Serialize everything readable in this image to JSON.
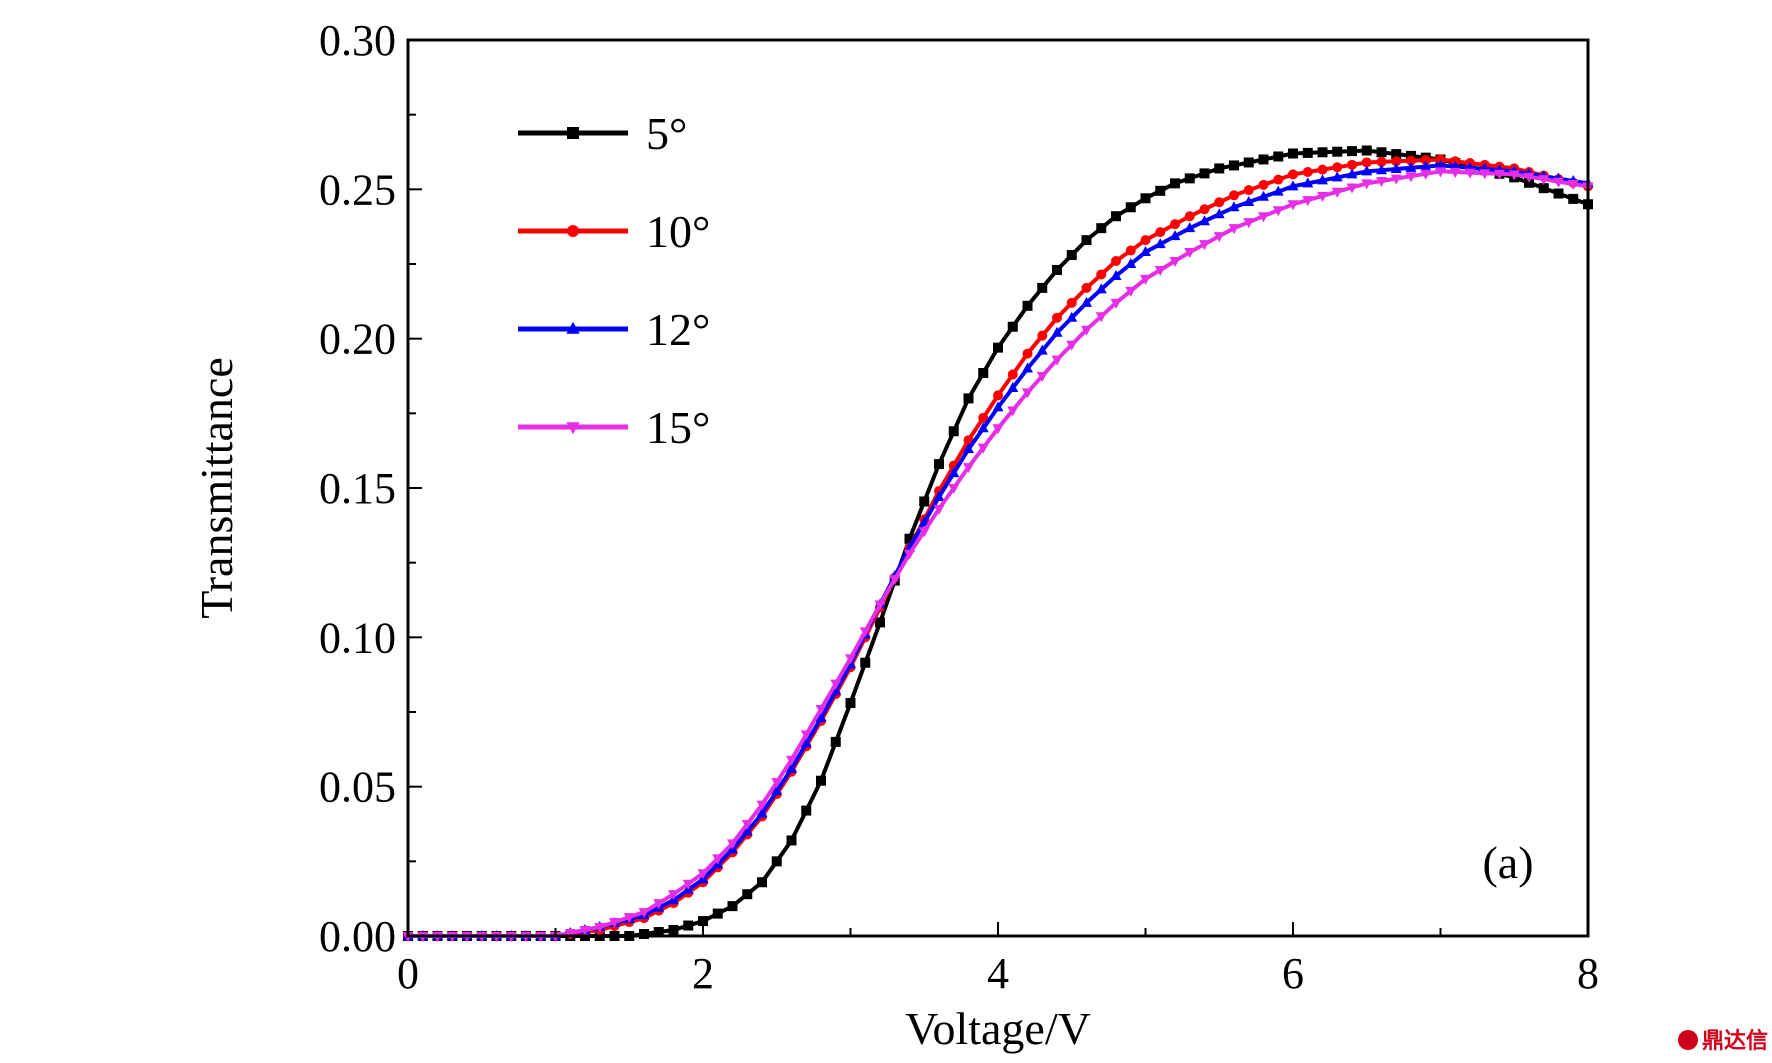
{
  "chart_data": {
    "type": "line",
    "title": "",
    "xlabel": "Voltage/V",
    "ylabel": "Transmittance",
    "xlim": [
      0,
      8
    ],
    "ylim": [
      0,
      0.3
    ],
    "xticks": [
      0,
      2,
      4,
      6,
      8
    ],
    "yticks": [
      0,
      0.05,
      0.1,
      0.15,
      0.2,
      0.25,
      0.3
    ],
    "xtick_labels": [
      "0",
      "2",
      "4",
      "6",
      "8"
    ],
    "ytick_labels": [
      "0.00",
      "0.05",
      "0.10",
      "0.15",
      "0.20",
      "0.25",
      "0.30"
    ],
    "grid": false,
    "legend_position": "top-left",
    "annotation": "(a)",
    "series": [
      {
        "name": "5°",
        "color": "#000000",
        "marker": "square",
        "x": [
          0,
          0.5,
          1.0,
          1.5,
          1.8,
          2.0,
          2.2,
          2.4,
          2.6,
          2.8,
          3.0,
          3.2,
          3.4,
          3.6,
          3.8,
          4.0,
          4.2,
          4.4,
          4.6,
          4.8,
          5.0,
          5.2,
          5.5,
          6.0,
          6.5,
          7.0,
          7.5,
          8.0
        ],
        "y": [
          0.0,
          0.0,
          0.0,
          0.0,
          0.002,
          0.005,
          0.01,
          0.018,
          0.032,
          0.052,
          0.078,
          0.105,
          0.133,
          0.158,
          0.18,
          0.197,
          0.211,
          0.223,
          0.233,
          0.241,
          0.247,
          0.252,
          0.257,
          0.262,
          0.263,
          0.26,
          0.254,
          0.245
        ]
      },
      {
        "name": "10°",
        "color": "#ff0000",
        "marker": "circle",
        "x": [
          0,
          0.5,
          1.0,
          1.3,
          1.6,
          1.8,
          2.0,
          2.2,
          2.4,
          2.6,
          2.8,
          3.0,
          3.2,
          3.4,
          3.6,
          3.8,
          4.0,
          4.2,
          4.4,
          4.6,
          4.8,
          5.0,
          5.3,
          5.6,
          6.0,
          6.5,
          7.0,
          7.5,
          8.0
        ],
        "y": [
          0.0,
          0.0,
          0.0,
          0.002,
          0.006,
          0.011,
          0.018,
          0.028,
          0.04,
          0.055,
          0.072,
          0.09,
          0.11,
          0.13,
          0.149,
          0.166,
          0.181,
          0.195,
          0.207,
          0.217,
          0.226,
          0.233,
          0.241,
          0.248,
          0.255,
          0.259,
          0.26,
          0.257,
          0.251
        ]
      },
      {
        "name": "12°",
        "color": "#0000ff",
        "marker": "triangle-up",
        "x": [
          0,
          0.5,
          1.0,
          1.3,
          1.6,
          1.8,
          2.0,
          2.2,
          2.4,
          2.6,
          2.8,
          3.0,
          3.2,
          3.4,
          3.6,
          3.8,
          4.0,
          4.2,
          4.4,
          4.6,
          4.8,
          5.0,
          5.3,
          5.6,
          6.0,
          6.5,
          7.0,
          7.5,
          8.0
        ],
        "y": [
          0.0,
          0.0,
          0.0,
          0.003,
          0.007,
          0.012,
          0.019,
          0.029,
          0.041,
          0.056,
          0.073,
          0.091,
          0.111,
          0.13,
          0.147,
          0.163,
          0.177,
          0.19,
          0.202,
          0.212,
          0.221,
          0.229,
          0.237,
          0.244,
          0.251,
          0.256,
          0.258,
          0.256,
          0.252
        ]
      },
      {
        "name": "15°",
        "color": "#e62ee6",
        "marker": "triangle-down",
        "x": [
          0,
          0.5,
          1.0,
          1.3,
          1.6,
          1.8,
          2.0,
          2.2,
          2.4,
          2.6,
          2.8,
          3.0,
          3.2,
          3.4,
          3.6,
          3.8,
          4.0,
          4.2,
          4.4,
          4.6,
          4.8,
          5.0,
          5.3,
          5.6,
          6.0,
          6.5,
          7.0,
          7.5,
          8.0
        ],
        "y": [
          0.0,
          0.0,
          0.0,
          0.003,
          0.008,
          0.014,
          0.021,
          0.031,
          0.044,
          0.059,
          0.076,
          0.093,
          0.111,
          0.128,
          0.143,
          0.157,
          0.17,
          0.182,
          0.193,
          0.203,
          0.212,
          0.22,
          0.229,
          0.237,
          0.245,
          0.252,
          0.256,
          0.255,
          0.251
        ]
      }
    ]
  },
  "watermark": {
    "text": "鼎达信",
    "color": "#d0021b"
  }
}
